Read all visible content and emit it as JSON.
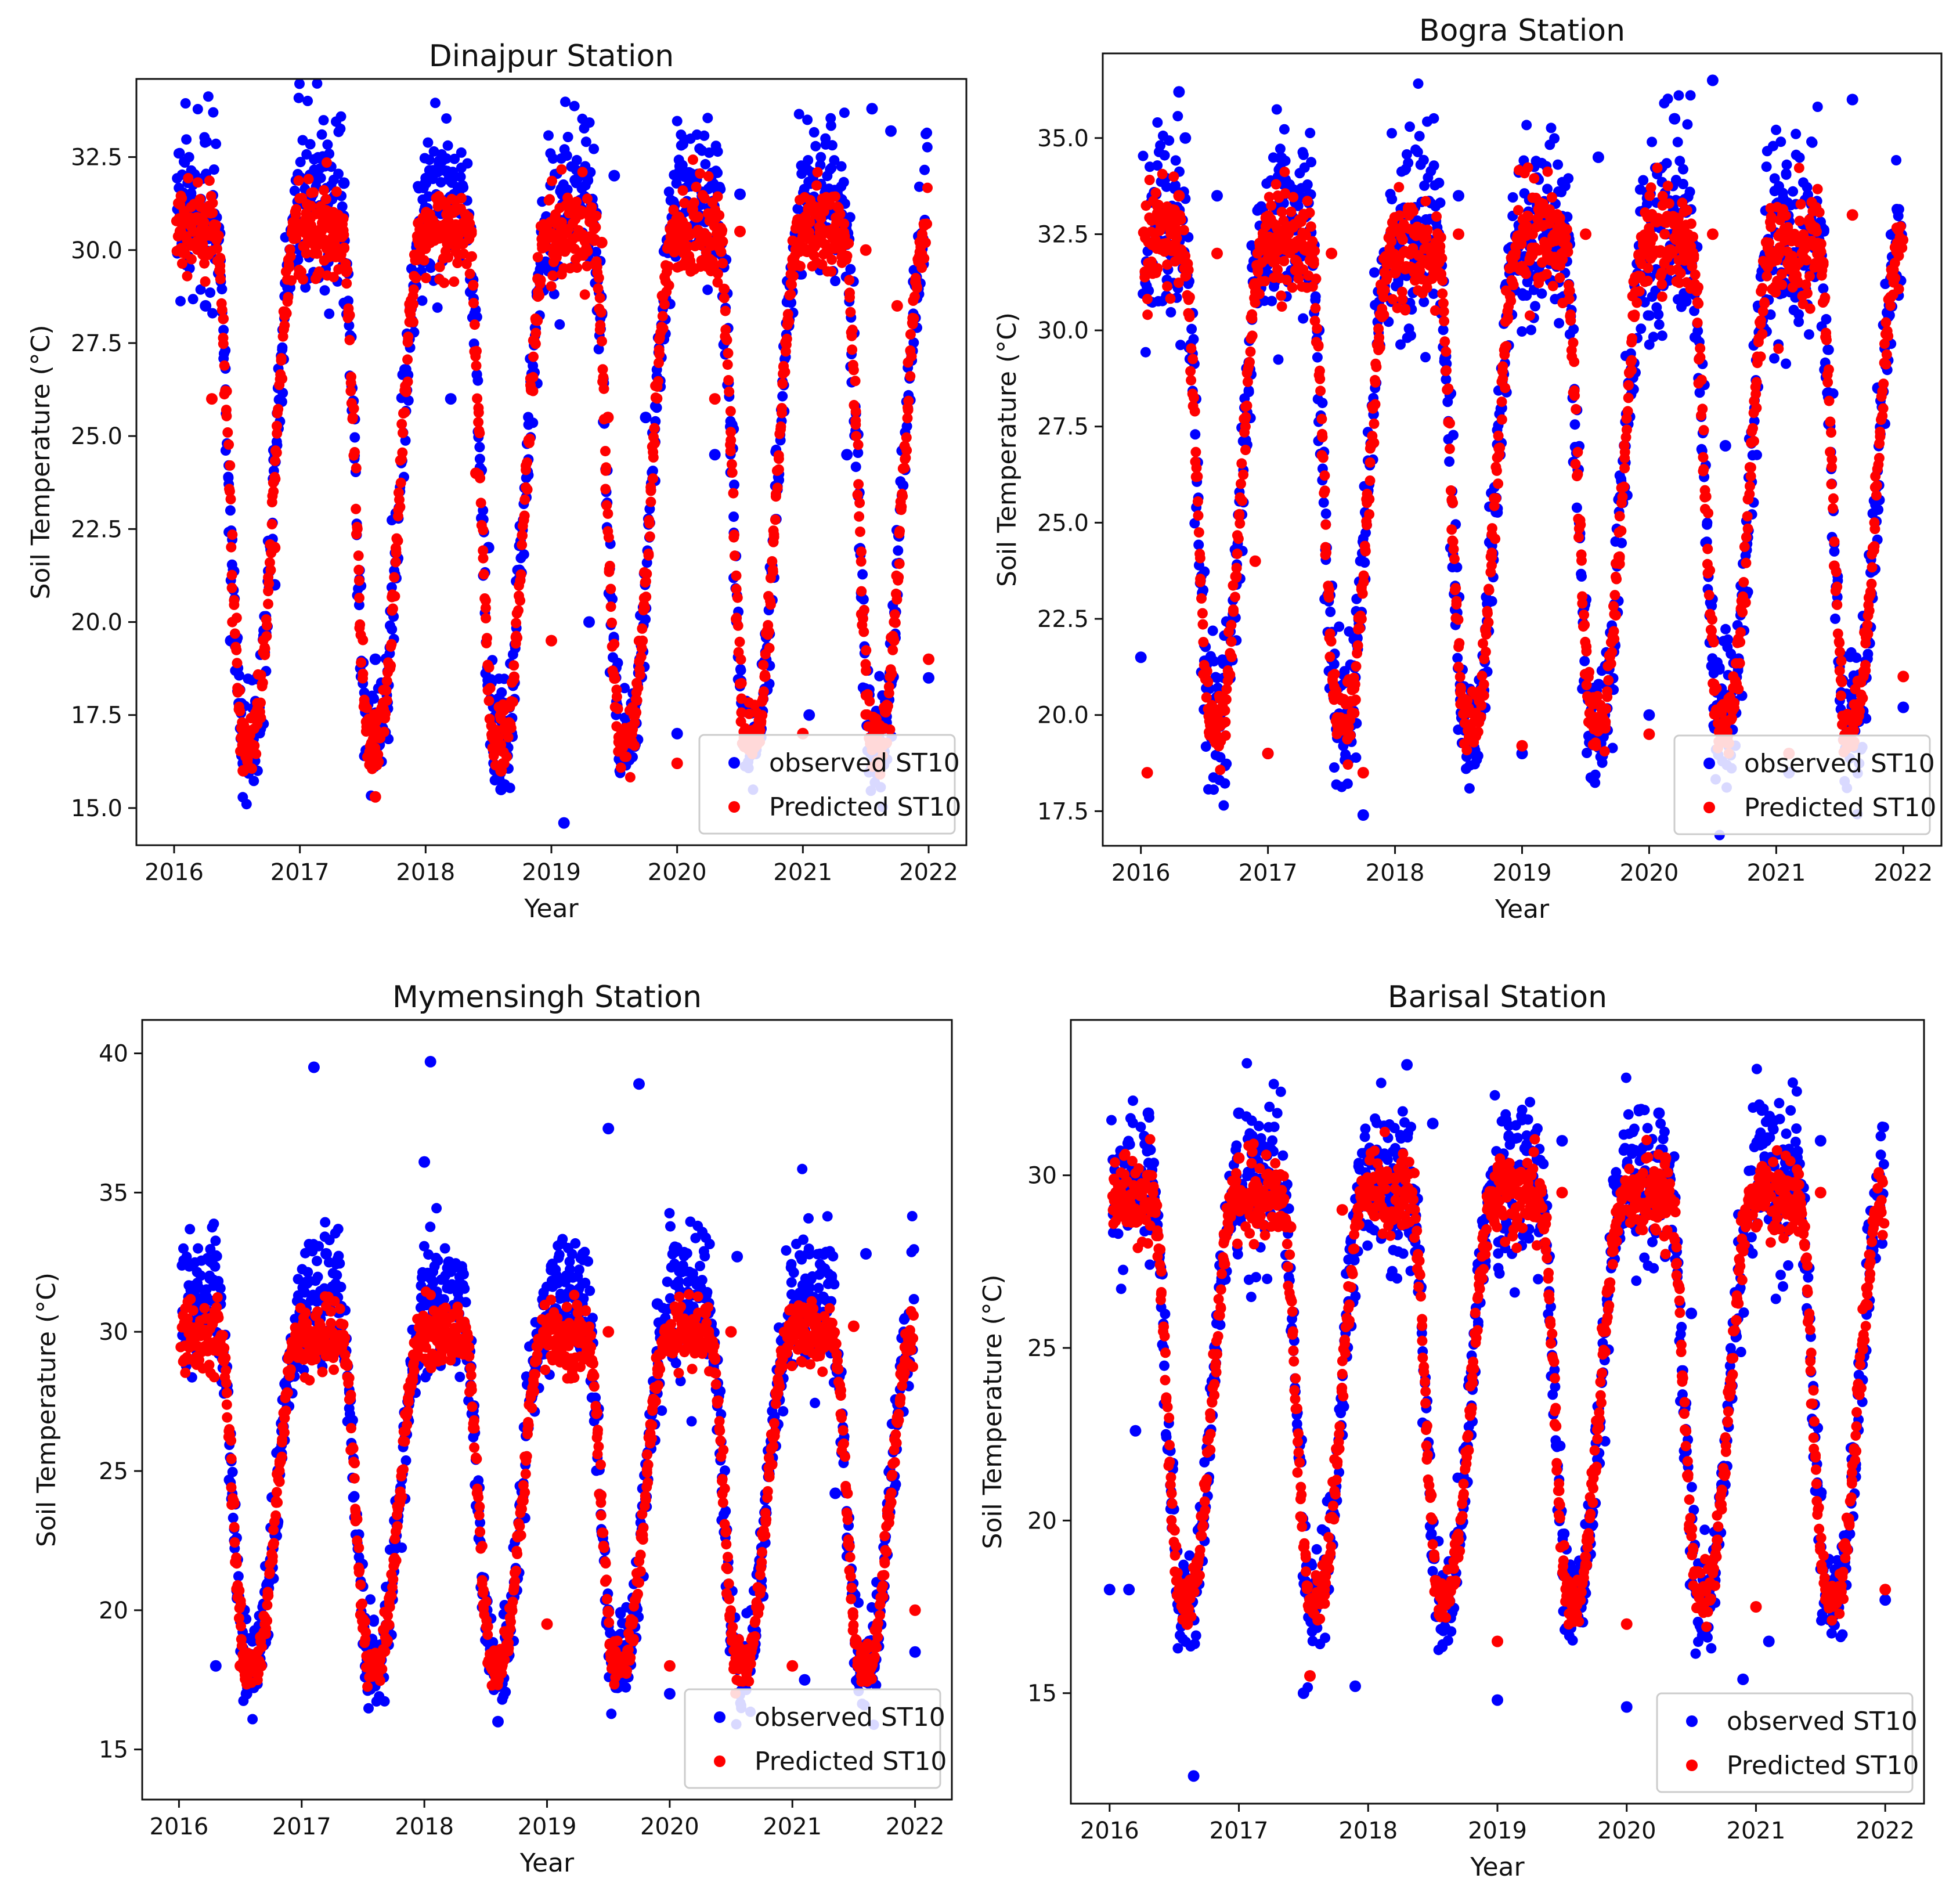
{
  "figure": {
    "background": "#ffffff"
  },
  "colors": {
    "observed": "#0000ff",
    "predicted": "#ff0000",
    "axis": "#111111",
    "legend_border": "#cccccc"
  },
  "chart_data": [
    {
      "type": "scatter",
      "id": "dinajpur",
      "title": "Dinajpur Station",
      "xlabel": "Year",
      "ylabel": "Soil Temperature (°C)",
      "xlim": [
        2015.7,
        2022.3
      ],
      "ylim": [
        14.0,
        34.6
      ],
      "xticks": [
        2016,
        2017,
        2018,
        2019,
        2020,
        2021,
        2022
      ],
      "xtick_labels": [
        "2016",
        "2017",
        "2018",
        "2019",
        "2020",
        "2021",
        "2022"
      ],
      "yticks": [
        15.0,
        17.5,
        20.0,
        22.5,
        25.0,
        27.5,
        30.0,
        32.5
      ],
      "ytick_labels": [
        "15.0",
        "17.5",
        "20.0",
        "22.5",
        "25.0",
        "27.5",
        "30.0",
        "32.5"
      ],
      "legend": {
        "position": "lower-right",
        "entries": [
          "observed ST10",
          "Predicted ST10"
        ]
      },
      "model": {
        "winter_min": 16.8,
        "summer_max": 30.5,
        "obs_offset": 0.9,
        "obs_spread": 1.1,
        "pred_spread": 0.6,
        "seed": 11
      },
      "series": [
        {
          "name": "observed ST10",
          "color": "#0000ff",
          "values": [
            [
              2016.05,
              31.0
            ],
            [
              2016.25,
              28.5
            ],
            [
              2016.45,
              19.5
            ],
            [
              2016.55,
              16.2
            ],
            [
              2016.8,
              21.0
            ],
            [
              2017.1,
              31.5
            ],
            [
              2017.35,
              31.8
            ],
            [
              2017.6,
              19.0
            ],
            [
              2018.0,
              31.8
            ],
            [
              2018.2,
              26.0
            ],
            [
              2018.5,
              22.0
            ],
            [
              2018.6,
              15.5
            ],
            [
              2019.1,
              14.6
            ],
            [
              2019.3,
              20.0
            ],
            [
              2019.5,
              32.0
            ],
            [
              2019.75,
              25.5
            ],
            [
              2020.0,
              17.0
            ],
            [
              2020.3,
              24.5
            ],
            [
              2020.5,
              31.5
            ],
            [
              2021.05,
              17.5
            ],
            [
              2021.35,
              24.5
            ],
            [
              2021.55,
              33.8
            ],
            [
              2021.7,
              33.2
            ],
            [
              2022.0,
              18.5
            ]
          ]
        },
        {
          "name": "Predicted ST10",
          "color": "#ff0000",
          "values": [
            [
              2016.05,
              30.5
            ],
            [
              2016.3,
              26.0
            ],
            [
              2016.55,
              16.0
            ],
            [
              2016.8,
              22.0
            ],
            [
              2017.1,
              30.2
            ],
            [
              2017.3,
              30.5
            ],
            [
              2017.6,
              15.3
            ],
            [
              2018.0,
              30.5
            ],
            [
              2018.4,
              24.0
            ],
            [
              2018.6,
              16.0
            ],
            [
              2019.0,
              19.5
            ],
            [
              2019.4,
              30.2
            ],
            [
              2019.45,
              25.5
            ],
            [
              2020.0,
              16.2
            ],
            [
              2020.3,
              26.0
            ],
            [
              2020.5,
              30.5
            ],
            [
              2021.0,
              17.0
            ],
            [
              2021.5,
              30.0
            ],
            [
              2021.75,
              28.5
            ],
            [
              2022.0,
              19.0
            ]
          ]
        }
      ]
    },
    {
      "type": "scatter",
      "id": "bogra",
      "title": "Bogra Station",
      "xlabel": "Year",
      "ylabel": "Soil Temperature (°C)",
      "xlim": [
        2015.7,
        2022.3
      ],
      "ylim": [
        16.6,
        37.2
      ],
      "xticks": [
        2016,
        2017,
        2018,
        2019,
        2020,
        2021,
        2022
      ],
      "xtick_labels": [
        "2016",
        "2017",
        "2018",
        "2019",
        "2020",
        "2021",
        "2022"
      ],
      "yticks": [
        17.5,
        20.0,
        22.5,
        25.0,
        27.5,
        30.0,
        32.5,
        35.0
      ],
      "ytick_labels": [
        "17.5",
        "20.0",
        "22.5",
        "25.0",
        "27.5",
        "30.0",
        "32.5",
        "35.0"
      ],
      "legend": {
        "position": "lower-right",
        "entries": [
          "observed ST10",
          "Predicted ST10"
        ]
      },
      "model": {
        "winter_min": 19.8,
        "summer_max": 32.3,
        "obs_offset": 0.2,
        "obs_spread": 1.4,
        "pred_spread": 0.7,
        "seed": 23
      },
      "series": [
        {
          "name": "observed ST10",
          "color": "#0000ff",
          "values": [
            [
              2016.0,
              21.5
            ],
            [
              2016.3,
              36.2
            ],
            [
              2016.35,
              35.0
            ],
            [
              2016.6,
              33.5
            ],
            [
              2017.0,
              19.0
            ],
            [
              2017.4,
              30.0
            ],
            [
              2017.7,
              22.0
            ],
            [
              2017.75,
              17.4
            ],
            [
              2018.5,
              33.5
            ],
            [
              2019.0,
              19.0
            ],
            [
              2019.5,
              23.0
            ],
            [
              2019.6,
              34.5
            ],
            [
              2020.0,
              20.0
            ],
            [
              2020.2,
              35.5
            ],
            [
              2020.5,
              36.5
            ],
            [
              2020.6,
              27.0
            ],
            [
              2021.1,
              18.5
            ],
            [
              2021.6,
              36.0
            ],
            [
              2021.8,
              28.5
            ],
            [
              2022.0,
              20.2
            ]
          ]
        },
        {
          "name": "Predicted ST10",
          "color": "#ff0000",
          "values": [
            [
              2016.05,
              18.5
            ],
            [
              2016.3,
              33.5
            ],
            [
              2016.6,
              32.0
            ],
            [
              2016.9,
              24.0
            ],
            [
              2017.0,
              19.0
            ],
            [
              2017.5,
              32.0
            ],
            [
              2017.75,
              18.5
            ],
            [
              2018.0,
              31.5
            ],
            [
              2018.5,
              32.5
            ],
            [
              2019.0,
              19.2
            ],
            [
              2019.5,
              32.5
            ],
            [
              2020.0,
              19.5
            ],
            [
              2020.5,
              32.5
            ],
            [
              2021.1,
              19.0
            ],
            [
              2021.6,
              33.0
            ],
            [
              2022.0,
              21.0
            ]
          ]
        }
      ]
    },
    {
      "type": "scatter",
      "id": "mymensingh",
      "title": "Mymensingh Station",
      "xlabel": "Year",
      "ylabel": "Soil Temperature (°C)",
      "xlim": [
        2015.7,
        2022.3
      ],
      "ylim": [
        13.2,
        41.2
      ],
      "xticks": [
        2016,
        2017,
        2018,
        2019,
        2020,
        2021,
        2022
      ],
      "xtick_labels": [
        "2016",
        "2017",
        "2018",
        "2019",
        "2020",
        "2021",
        "2022"
      ],
      "yticks": [
        15,
        20,
        25,
        30,
        35,
        40
      ],
      "ytick_labels": [
        "15",
        "20",
        "25",
        "30",
        "35",
        "40"
      ],
      "legend": {
        "position": "lower-right",
        "entries": [
          "observed ST10",
          "Predicted ST10"
        ]
      },
      "model": {
        "winter_min": 18.0,
        "summer_max": 29.8,
        "obs_offset": 1.4,
        "obs_spread": 1.2,
        "pred_spread": 0.6,
        "seed": 37
      },
      "series": [
        {
          "name": "observed ST10",
          "color": "#0000ff",
          "values": [
            [
              2016.1,
              31.5
            ],
            [
              2016.3,
              18.0
            ],
            [
              2016.55,
              17.0
            ],
            [
              2017.1,
              39.5
            ],
            [
              2017.2,
              32.8
            ],
            [
              2017.55,
              17.3
            ],
            [
              2018.0,
              36.1
            ],
            [
              2018.05,
              39.7
            ],
            [
              2018.2,
              32.5
            ],
            [
              2018.6,
              16.0
            ],
            [
              2019.5,
              37.3
            ],
            [
              2019.5,
              20.0
            ],
            [
              2019.7,
              20.0
            ],
            [
              2019.75,
              38.9
            ],
            [
              2019.9,
              31.0
            ],
            [
              2020.0,
              17.0
            ],
            [
              2020.55,
              32.7
            ],
            [
              2021.0,
              30.0
            ],
            [
              2021.1,
              17.5
            ],
            [
              2021.35,
              24.2
            ],
            [
              2021.6,
              32.8
            ],
            [
              2022.0,
              18.5
            ]
          ]
        },
        {
          "name": "Predicted ST10",
          "color": "#ff0000",
          "values": [
            [
              2016.1,
              29.5
            ],
            [
              2016.5,
              18.0
            ],
            [
              2017.1,
              30.0
            ],
            [
              2017.55,
              18.0
            ],
            [
              2018.1,
              30.0
            ],
            [
              2018.6,
              17.5
            ],
            [
              2019.0,
              19.5
            ],
            [
              2019.5,
              30.0
            ],
            [
              2020.0,
              18.0
            ],
            [
              2020.5,
              30.0
            ],
            [
              2021.0,
              18.0
            ],
            [
              2021.5,
              30.2
            ],
            [
              2022.0,
              20.0
            ]
          ]
        }
      ]
    },
    {
      "type": "scatter",
      "id": "barisal",
      "title": "Barisal Station",
      "xlabel": "Year",
      "ylabel": "Soil Temperature (°C)",
      "xlim": [
        2015.7,
        2022.3
      ],
      "ylim": [
        11.8,
        34.5
      ],
      "xticks": [
        2016,
        2017,
        2018,
        2019,
        2020,
        2021,
        2022
      ],
      "xtick_labels": [
        "2016",
        "2017",
        "2018",
        "2019",
        "2020",
        "2021",
        "2022"
      ],
      "yticks": [
        15,
        20,
        25,
        30
      ],
      "ytick_labels": [
        "15",
        "20",
        "25",
        "30"
      ],
      "legend": {
        "position": "lower-right",
        "entries": [
          "observed ST10",
          "Predicted ST10"
        ]
      },
      "model": {
        "winter_min": 17.8,
        "summer_max": 29.4,
        "obs_offset": 0.5,
        "obs_spread": 1.2,
        "pred_spread": 0.6,
        "seed": 53
      },
      "series": [
        {
          "name": "observed ST10",
          "color": "#0000ff",
          "values": [
            [
              2016.0,
              18.0
            ],
            [
              2016.15,
              18.0
            ],
            [
              2016.2,
              22.6
            ],
            [
              2016.3,
              31.8
            ],
            [
              2016.65,
              12.6
            ],
            [
              2017.0,
              31.8
            ],
            [
              2017.5,
              15.0
            ],
            [
              2017.9,
              15.2
            ],
            [
              2018.3,
              33.2
            ],
            [
              2018.5,
              31.5
            ],
            [
              2019.0,
              14.8
            ],
            [
              2019.5,
              31.0
            ],
            [
              2020.0,
              14.6
            ],
            [
              2020.25,
              31.8
            ],
            [
              2020.5,
              26.0
            ],
            [
              2020.9,
              15.4
            ],
            [
              2021.1,
              16.5
            ],
            [
              2021.5,
              31.0
            ],
            [
              2022.0,
              17.7
            ]
          ]
        },
        {
          "name": "Predicted ST10",
          "color": "#ff0000",
          "values": [
            [
              2016.05,
              29.5
            ],
            [
              2016.6,
              17.0
            ],
            [
              2017.0,
              30.5
            ],
            [
              2017.4,
              28.5
            ],
            [
              2017.55,
              15.5
            ],
            [
              2017.8,
              29.0
            ],
            [
              2018.3,
              29.5
            ],
            [
              2019.0,
              16.5
            ],
            [
              2019.5,
              29.5
            ],
            [
              2020.0,
              17.0
            ],
            [
              2020.3,
              30.5
            ],
            [
              2021.0,
              17.5
            ],
            [
              2021.5,
              29.5
            ],
            [
              2022.0,
              18.0
            ]
          ]
        }
      ]
    }
  ]
}
